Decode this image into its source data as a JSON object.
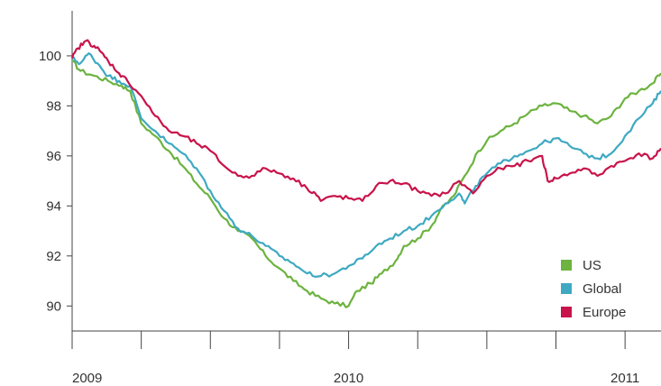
{
  "chart_data": {
    "type": "line",
    "title": "",
    "xlabel": "",
    "ylabel": "",
    "xlim": [
      2009.0,
      2011.13
    ],
    "ylim": [
      89.0,
      101.8
    ],
    "x_tick_labels": [
      {
        "x": 2009,
        "label": "2009"
      },
      {
        "x": 2010,
        "label": "2010"
      },
      {
        "x": 2011,
        "label": "2011"
      }
    ],
    "x_minor_ticks": [
      2009.25,
      2009.5,
      2009.75,
      2010.25,
      2010.5,
      2010.75
    ],
    "y_ticks": [
      90,
      92,
      94,
      96,
      98,
      100
    ],
    "y_tick_labels": [
      "90",
      "92",
      "94",
      "96",
      "98",
      "100"
    ],
    "grid": false,
    "legend": {
      "position": "bottom-right",
      "entries": [
        {
          "name": "US",
          "color": "#6cb33f"
        },
        {
          "name": "Global",
          "color": "#3fa9c2"
        },
        {
          "name": "Europe",
          "color": "#c8144a"
        }
      ]
    },
    "series": [
      {
        "name": "US",
        "color": "#6cb33f",
        "x": [
          2009.0,
          2009.03,
          2009.08,
          2009.13,
          2009.18,
          2009.21,
          2009.25,
          2009.3,
          2009.35,
          2009.4,
          2009.45,
          2009.5,
          2009.55,
          2009.6,
          2009.65,
          2009.7,
          2009.75,
          2009.8,
          2009.85,
          2009.9,
          2009.95,
          2010.0,
          2010.03,
          2010.08,
          2010.12,
          2010.17,
          2010.2,
          2010.25,
          2010.3,
          2010.33,
          2010.38,
          2010.42,
          2010.47,
          2010.5,
          2010.55,
          2010.6,
          2010.65,
          2010.7,
          2010.75,
          2010.8,
          2010.85,
          2010.9,
          2010.95,
          2011.0,
          2011.05,
          2011.1,
          2011.13
        ],
        "values": [
          99.8,
          99.4,
          99.2,
          99.0,
          98.8,
          98.6,
          97.3,
          96.8,
          96.2,
          95.6,
          94.9,
          94.3,
          93.5,
          93.0,
          92.7,
          92.0,
          91.5,
          91.0,
          90.6,
          90.3,
          90.1,
          90.0,
          90.6,
          90.9,
          91.3,
          91.8,
          92.4,
          92.7,
          93.2,
          93.8,
          94.4,
          95.2,
          96.2,
          96.6,
          97.0,
          97.3,
          97.7,
          98.0,
          98.1,
          97.8,
          97.6,
          97.3,
          97.6,
          98.3,
          98.6,
          98.9,
          99.3
        ]
      },
      {
        "name": "Global",
        "color": "#3fa9c2",
        "x": [
          2009.0,
          2009.03,
          2009.06,
          2009.1,
          2009.13,
          2009.17,
          2009.21,
          2009.25,
          2009.3,
          2009.35,
          2009.4,
          2009.45,
          2009.5,
          2009.55,
          2009.6,
          2009.65,
          2009.7,
          2009.75,
          2009.8,
          2009.85,
          2009.9,
          2009.95,
          2010.0,
          2010.05,
          2010.1,
          2010.15,
          2010.2,
          2010.25,
          2010.3,
          2010.35,
          2010.4,
          2010.42,
          2010.46,
          2010.5,
          2010.55,
          2010.6,
          2010.65,
          2010.7,
          2010.75,
          2010.8,
          2010.85,
          2010.9,
          2010.95,
          2011.0,
          2011.05,
          2011.1,
          2011.13
        ],
        "values": [
          99.9,
          99.7,
          100.1,
          99.6,
          99.2,
          99.0,
          98.8,
          97.5,
          97.0,
          96.5,
          96.1,
          95.5,
          94.6,
          93.8,
          93.1,
          92.8,
          92.4,
          92.0,
          91.7,
          91.3,
          91.2,
          91.3,
          91.6,
          91.9,
          92.4,
          92.7,
          93.0,
          93.2,
          93.6,
          94.1,
          94.5,
          94.1,
          94.8,
          95.3,
          95.7,
          96.0,
          96.2,
          96.5,
          96.7,
          96.4,
          96.1,
          95.9,
          96.1,
          96.8,
          97.5,
          98.1,
          98.6
        ]
      },
      {
        "name": "Europe",
        "color": "#c8144a",
        "x": [
          2009.0,
          2009.02,
          2009.05,
          2009.08,
          2009.1,
          2009.13,
          2009.17,
          2009.2,
          2009.25,
          2009.3,
          2009.35,
          2009.4,
          2009.45,
          2009.5,
          2009.55,
          2009.6,
          2009.65,
          2009.7,
          2009.75,
          2009.8,
          2009.85,
          2009.88,
          2009.9,
          2009.95,
          2010.0,
          2010.05,
          2010.1,
          2010.15,
          2010.2,
          2010.25,
          2010.3,
          2010.35,
          2010.4,
          2010.45,
          2010.5,
          2010.55,
          2010.6,
          2010.65,
          2010.7,
          2010.72,
          2010.75,
          2010.8,
          2010.85,
          2010.9,
          2010.95,
          2011.0,
          2011.05,
          2011.1,
          2011.13
        ],
        "values": [
          99.9,
          100.3,
          100.6,
          100.4,
          100.2,
          99.8,
          99.3,
          99.0,
          98.4,
          97.6,
          97.0,
          96.8,
          96.5,
          96.2,
          95.6,
          95.2,
          95.2,
          95.5,
          95.3,
          95.1,
          94.7,
          94.5,
          94.2,
          94.4,
          94.3,
          94.2,
          94.8,
          95.0,
          94.9,
          94.6,
          94.4,
          94.5,
          95.0,
          94.5,
          95.2,
          95.5,
          95.6,
          95.8,
          96.0,
          95.0,
          95.1,
          95.3,
          95.5,
          95.2,
          95.6,
          95.8,
          96.1,
          95.9,
          96.3
        ]
      }
    ]
  }
}
